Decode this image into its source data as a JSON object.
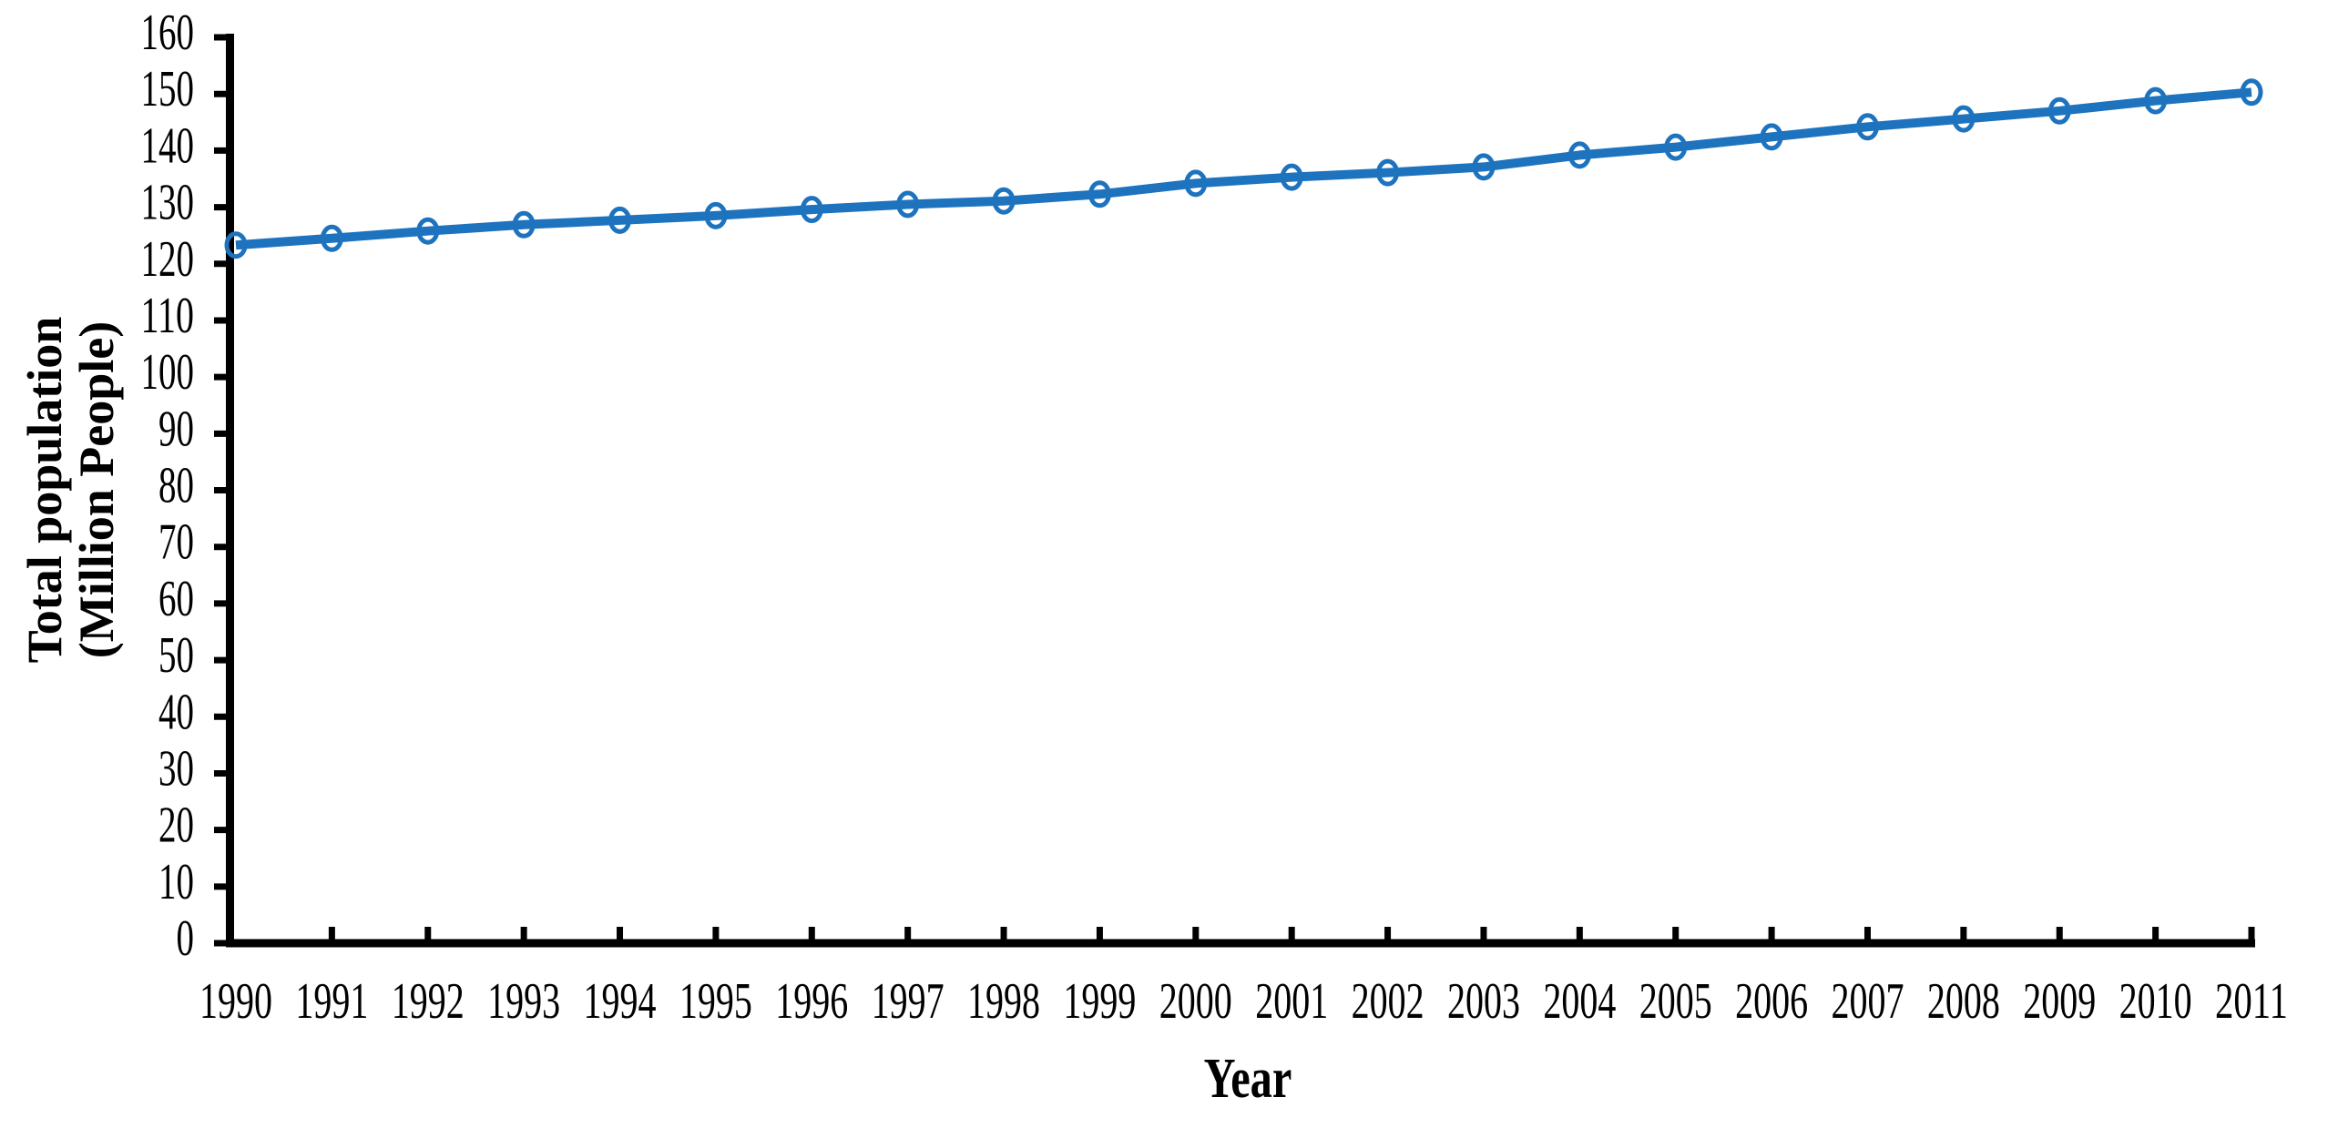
{
  "figure": {
    "background_color": "#ffffff",
    "axis_color": "#000000"
  },
  "chart_data": {
    "type": "line",
    "title": "",
    "xlabel": "Year",
    "ylabel_line1": "Total population",
    "ylabel_line2": "(Million People)",
    "x": [
      1990,
      1991,
      1992,
      1993,
      1994,
      1995,
      1996,
      1997,
      1998,
      1999,
      2000,
      2001,
      2002,
      2003,
      2004,
      2005,
      2006,
      2007,
      2008,
      2009,
      2010,
      2011
    ],
    "series": [
      {
        "name": "Total population",
        "values": [
          123.3,
          124.5,
          125.8,
          126.9,
          127.7,
          128.5,
          129.6,
          130.5,
          131.1,
          132.3,
          134.2,
          135.3,
          136.1,
          137.1,
          139.2,
          140.6,
          142.4,
          144.2,
          145.6,
          147.0,
          148.8,
          150.3
        ],
        "color": "#1e73be",
        "marker": "open-circle",
        "line_width": 10
      }
    ],
    "ylim": [
      0,
      160
    ],
    "ytick_step": 10,
    "ytick_labels": [
      "0",
      "10",
      "20",
      "30",
      "40",
      "50",
      "60",
      "70",
      "80",
      "90",
      "100",
      "110",
      "120",
      "130",
      "140",
      "150",
      "160"
    ],
    "grid": false,
    "legend_position": "none"
  }
}
